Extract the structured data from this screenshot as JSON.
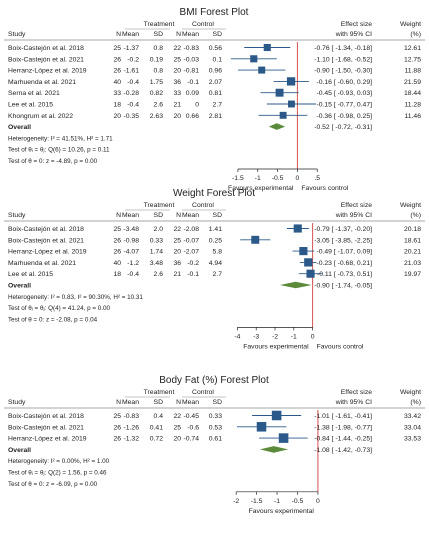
{
  "labels": {
    "study": "Study",
    "treatment": "Treatment",
    "control": "Control",
    "n": "N",
    "mean": "Mean",
    "sd": "SD",
    "effect_size": "Effect size",
    "with_ci": "with 95% CI",
    "weight": "Weight",
    "weight_unit": "(%)"
  },
  "chart_data": [
    {
      "type": "forest",
      "title": "BMI Forest Plot",
      "xlabel_left": "Favours experimental",
      "xlabel_right": "Favours control",
      "ticks": [
        -1.5,
        -1,
        -0.5,
        0,
        0.5
      ],
      "tick_labels": [
        "-1.5",
        "-1",
        "-0.5",
        "0",
        ".5"
      ],
      "xlim": [
        -1.75,
        0.62
      ],
      "null_value": 0,
      "studies": [
        {
          "name": "Boix-Castejón et al. 2018",
          "n_t": "25",
          "mean_t": "-1.37",
          "sd_t": "0.8",
          "n_c": "22",
          "mean_c": "-0.83",
          "sd_c": "0.56",
          "es_text": "-0.76 [ -1.34, -0.18]",
          "weight": "12.61",
          "es": -0.76,
          "lo": -1.34,
          "hi": -0.18,
          "w": 12.61
        },
        {
          "name": "Boix-Castejón et al. 2021",
          "n_t": "26",
          "mean_t": "-0.2",
          "sd_t": "0.19",
          "n_c": "25",
          "mean_c": "-0.03",
          "sd_c": "0.1",
          "es_text": "-1.10 [ -1.68, -0.52]",
          "weight": "12.75",
          "es": -1.1,
          "lo": -1.68,
          "hi": -0.52,
          "w": 12.75
        },
        {
          "name": "Herranz-López et al. 2019",
          "n_t": "26",
          "mean_t": "-1.61",
          "sd_t": "0.8",
          "n_c": "20",
          "mean_c": "-0.81",
          "sd_c": "0.96",
          "es_text": "-0.90 [ -1.50, -0.30]",
          "weight": "11.88",
          "es": -0.9,
          "lo": -1.5,
          "hi": -0.3,
          "w": 11.88
        },
        {
          "name": "Marhuenda et al. 2021",
          "n_t": "40",
          "mean_t": "-0.4",
          "sd_t": "1.75",
          "n_c": "36",
          "mean_c": "-0.1",
          "sd_c": "2.07",
          "es_text": "-0.16 [ -0.60, 0.29]",
          "weight": "21.59",
          "es": -0.16,
          "lo": -0.6,
          "hi": 0.29,
          "w": 21.59
        },
        {
          "name": "Serna et al. 2021",
          "n_t": "33",
          "mean_t": "-0.28",
          "sd_t": "0.82",
          "n_c": "33",
          "mean_c": "0.09",
          "sd_c": "0.81",
          "es_text": "-0.45 [ -0.93, 0.03]",
          "weight": "18.44",
          "es": -0.45,
          "lo": -0.93,
          "hi": 0.03,
          "w": 18.44
        },
        {
          "name": "Lee et al. 2015",
          "n_t": "18",
          "mean_t": "-0.4",
          "sd_t": "2.6",
          "n_c": "21",
          "mean_c": "0",
          "sd_c": "2.7",
          "es_text": "-0.15 [ -0.77, 0.47]",
          "weight": "11.28",
          "es": -0.15,
          "lo": -0.77,
          "hi": 0.47,
          "w": 11.28
        },
        {
          "name": "Khongrum et al. 2022",
          "n_t": "20",
          "mean_t": "-0.35",
          "sd_t": "2.63",
          "n_c": "20",
          "mean_c": "0.66",
          "sd_c": "2.81",
          "es_text": "-0.36 [ -0.98, 0.25]",
          "weight": "11.46",
          "es": -0.36,
          "lo": -0.98,
          "hi": 0.25,
          "w": 11.46
        }
      ],
      "overall": {
        "label": "Overall",
        "es_text": "-0.52 [ -0.72, -0.31]",
        "es": -0.52,
        "lo": -0.72,
        "hi": -0.31
      },
      "stats": [
        "Heterogeneity: I² = 41.51%, H² = 1.71",
        "Test of θᵢ = θⱼ: Q(6) = 10.26, p = 0.11",
        "Test of θ = 0: z = -4.89, p = 0.00"
      ]
    },
    {
      "type": "forest",
      "title": "Weight Forest Plot",
      "xlabel_left": "Favours experimental",
      "xlabel_right": "Favours control",
      "ticks": [
        -4,
        -3,
        -2,
        -1,
        0
      ],
      "tick_labels": [
        "-4",
        "-3",
        "-2",
        "-1",
        "0"
      ],
      "xlim": [
        -4.5,
        0.5
      ],
      "null_value": 0,
      "studies": [
        {
          "name": "Boix-Castejón et al. 2018",
          "n_t": "25",
          "mean_t": "-3.48",
          "sd_t": "2.0",
          "n_c": "22",
          "mean_c": "-2.08",
          "sd_c": "1.41",
          "es_text": "-0.79 [ -1.37, -0.20]",
          "weight": "20.18",
          "es": -0.79,
          "lo": -1.37,
          "hi": -0.2,
          "w": 20.18
        },
        {
          "name": "Boix-Castejón et al. 2021",
          "n_t": "26",
          "mean_t": "-0.98",
          "sd_t": "0.33",
          "n_c": "25",
          "mean_c": "-0.07",
          "sd_c": "0.25",
          "es_text": "-3.05 [ -3.85, -2.25]",
          "weight": "18.61",
          "es": -3.05,
          "lo": -3.85,
          "hi": -2.25,
          "w": 18.61
        },
        {
          "name": "Herranz-López et al. 2019",
          "n_t": "26",
          "mean_t": "-4.07",
          "sd_t": "1.74",
          "n_c": "20",
          "mean_c": "-2.07",
          "sd_c": "5.8",
          "es_text": "-0.49 [ -1.07, 0.09]",
          "weight": "20.21",
          "es": -0.49,
          "lo": -1.07,
          "hi": 0.09,
          "w": 20.21
        },
        {
          "name": "Marhuenda et al. 2021",
          "n_t": "40",
          "mean_t": "-1.2",
          "sd_t": "3.48",
          "n_c": "36",
          "mean_c": "-0.2",
          "sd_c": "4.94",
          "es_text": "-0.23 [ -0.68, 0.21]",
          "weight": "21.03",
          "es": -0.23,
          "lo": -0.68,
          "hi": 0.21,
          "w": 21.03
        },
        {
          "name": "Lee et al. 2015",
          "n_t": "18",
          "mean_t": "-0.4",
          "sd_t": "2.6",
          "n_c": "21",
          "mean_c": "-0.1",
          "sd_c": "2.7",
          "es_text": "-0.11 [ -0.73, 0.51]",
          "weight": "19.97",
          "es": -0.11,
          "lo": -0.73,
          "hi": 0.51,
          "w": 19.97
        }
      ],
      "overall": {
        "label": "Overall",
        "es_text": "-0.90 [ -1.74, -0.05]",
        "es": -0.9,
        "lo": -1.74,
        "hi": -0.05
      },
      "stats": [
        "Heterogeneity: I² = 0.83, I² = 90.30%, H² = 10.31",
        "Test of θᵢ = θⱼ: Q(4) = 41.24, p = 0.00",
        "Test of θ = 0: z = -2.08, p = 0.04"
      ]
    },
    {
      "type": "forest",
      "title": "Body Fat (%) Forest Plot",
      "xlabel_left": "Favours experimental",
      "xlabel_right": "",
      "ticks": [
        -2,
        -1.5,
        -1,
        -0.5,
        0
      ],
      "tick_labels": [
        "-2",
        "-1.5",
        "-1",
        "-0.5",
        "0"
      ],
      "xlim": [
        -2.2,
        0.1
      ],
      "null_value": 0,
      "studies": [
        {
          "name": "Boix-Castejón et al. 2018",
          "n_t": "25",
          "mean_t": "-0.83",
          "sd_t": "0.4",
          "n_c": "22",
          "mean_c": "-0.45",
          "sd_c": "0.33",
          "es_text": "-1.01 [ -1.61, -0.41]",
          "weight": "33.42",
          "es": -1.01,
          "lo": -1.61,
          "hi": -0.41,
          "w": 33.42
        },
        {
          "name": "Boix-Castejón et al. 2021",
          "n_t": "26",
          "mean_t": "-1.26",
          "sd_t": "0.41",
          "n_c": "25",
          "mean_c": "-0.6",
          "sd_c": "0.53",
          "es_text": "-1.38 [ -1.98, -0.77]",
          "weight": "33.04",
          "es": -1.38,
          "lo": -1.98,
          "hi": -0.77,
          "w": 33.04
        },
        {
          "name": "Herranz-López et al. 2019",
          "n_t": "26",
          "mean_t": "-1.32",
          "sd_t": "0.72",
          "n_c": "20",
          "mean_c": "-0.74",
          "sd_c": "0.61",
          "es_text": "-0.84 [ -1.44, -0.25]",
          "weight": "33.53",
          "es": -0.84,
          "lo": -1.44,
          "hi": -0.25,
          "w": 33.53
        }
      ],
      "overall": {
        "label": "Overall",
        "es_text": "-1.08 [ -1.42, -0.73]",
        "es": -1.08,
        "lo": -1.42,
        "hi": -0.73
      },
      "stats": [
        "Heterogeneity: I² = 0.00%, H² = 1.00",
        "Test of θᵢ = θⱼ: Q(2) = 1.56, p = 0.46",
        "Test of θ = 0: z = -6.09, p = 0.00"
      ]
    }
  ],
  "colors": {
    "marker": "#2b5a8a",
    "diamond": "#5a8a3a",
    "null_line": "#d9534f",
    "text": "#222222",
    "rule": "#8a8a8a"
  }
}
